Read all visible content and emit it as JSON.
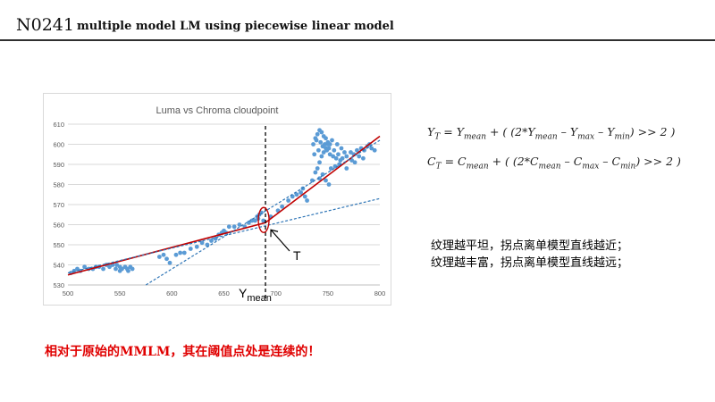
{
  "header": {
    "slide_id": "N0241",
    "title": "multiple  model LM using piecewise linear model"
  },
  "formulas": {
    "yt": {
      "lhs": "Y",
      "lhs_sub": "T",
      "p1": " = Y",
      "s1": "mean",
      "p2": " + ( (2*Y",
      "s2": "mean",
      "p3": " – Y",
      "s3": "max",
      "p4": " – Y",
      "s4": "min",
      "p5": ") >> 2 )"
    },
    "ct": {
      "lhs": "C",
      "lhs_sub": "T",
      "p1": " = C",
      "s1": "mean",
      "p2": " + ( (2*C",
      "s2": "mean",
      "p3": " – C",
      "s3": "max",
      "p4": " – C",
      "s4": "min",
      "p5": ") >> 2 )"
    }
  },
  "notes": {
    "line1": "纹理越平坦，拐点离单模型直线越近；",
    "line2": "纹理越丰富，拐点离单模型直线越远；"
  },
  "conclusion": "相对于原始的MMLM，其在阈值点处是连续的！",
  "annotations": {
    "ymean_main": "Y",
    "ymean_sub": "mean",
    "t_label": "T"
  },
  "colors": {
    "points": "#5b9bd5",
    "piecewise_line": "#c00000",
    "fit_line": "#2e75b6",
    "conclusion_text": "#e00000"
  },
  "chart_data": {
    "type": "scatter",
    "title": "Luma vs Chroma cloudpoint",
    "xlim": [
      500,
      800
    ],
    "ylim": [
      530,
      610
    ],
    "x_ticks": [
      500,
      550,
      600,
      650,
      700,
      750,
      800
    ],
    "y_ticks": [
      530,
      540,
      550,
      560,
      570,
      580,
      590,
      600,
      610
    ],
    "grid": true,
    "threshold_x": 690,
    "points": [
      [
        503,
        536
      ],
      [
        506,
        537
      ],
      [
        509,
        538
      ],
      [
        512,
        537
      ],
      [
        516,
        539
      ],
      [
        520,
        538
      ],
      [
        524,
        538
      ],
      [
        527,
        539
      ],
      [
        530,
        539
      ],
      [
        534,
        538
      ],
      [
        537,
        540
      ],
      [
        540,
        539
      ],
      [
        543,
        540
      ],
      [
        547,
        540
      ],
      [
        550,
        539
      ],
      [
        552,
        538
      ],
      [
        555,
        539
      ],
      [
        557,
        538
      ],
      [
        560,
        539
      ],
      [
        562,
        538
      ],
      [
        558,
        537
      ],
      [
        550,
        537
      ],
      [
        546,
        538
      ],
      [
        588,
        544
      ],
      [
        592,
        545
      ],
      [
        595,
        543
      ],
      [
        598,
        541
      ],
      [
        604,
        545
      ],
      [
        608,
        546
      ],
      [
        612,
        546
      ],
      [
        618,
        548
      ],
      [
        624,
        549
      ],
      [
        629,
        551
      ],
      [
        634,
        550
      ],
      [
        638,
        552
      ],
      [
        642,
        553
      ],
      [
        645,
        555
      ],
      [
        648,
        556
      ],
      [
        650,
        557
      ],
      [
        652,
        556
      ],
      [
        655,
        559
      ],
      [
        660,
        559
      ],
      [
        665,
        560
      ],
      [
        670,
        559
      ],
      [
        674,
        561
      ],
      [
        677,
        562
      ],
      [
        680,
        562
      ],
      [
        682,
        564
      ],
      [
        684,
        565
      ],
      [
        686,
        566
      ],
      [
        683,
        563
      ],
      [
        688,
        562
      ],
      [
        695,
        564
      ],
      [
        702,
        567
      ],
      [
        706,
        569
      ],
      [
        712,
        572
      ],
      [
        716,
        574
      ],
      [
        720,
        575
      ],
      [
        724,
        576
      ],
      [
        728,
        574
      ],
      [
        730,
        572
      ],
      [
        726,
        578
      ],
      [
        735,
        582
      ],
      [
        738,
        586
      ],
      [
        740,
        588
      ],
      [
        742,
        591
      ],
      [
        744,
        594
      ],
      [
        746,
        596
      ],
      [
        748,
        598
      ],
      [
        750,
        600
      ],
      [
        736,
        600
      ],
      [
        738,
        603
      ],
      [
        740,
        605
      ],
      [
        742,
        607
      ],
      [
        744,
        606
      ],
      [
        746,
        604
      ],
      [
        748,
        603
      ],
      [
        750,
        601
      ],
      [
        752,
        600
      ],
      [
        754,
        602
      ],
      [
        737,
        595
      ],
      [
        741,
        597
      ],
      [
        745,
        599
      ],
      [
        749,
        597
      ],
      [
        752,
        595
      ],
      [
        755,
        594
      ],
      [
        758,
        593
      ],
      [
        760,
        595
      ],
      [
        762,
        592
      ],
      [
        739,
        602
      ],
      [
        743,
        601
      ],
      [
        747,
        600
      ],
      [
        751,
        598
      ],
      [
        756,
        597
      ],
      [
        759,
        600
      ],
      [
        763,
        598
      ],
      [
        766,
        596
      ],
      [
        753,
        588
      ],
      [
        757,
        589
      ],
      [
        761,
        590
      ],
      [
        764,
        593
      ],
      [
        768,
        594
      ],
      [
        772,
        596
      ],
      [
        775,
        595
      ],
      [
        778,
        597
      ],
      [
        782,
        598
      ],
      [
        785,
        597
      ],
      [
        788,
        599
      ],
      [
        790,
        600
      ],
      [
        792,
        598
      ],
      [
        795,
        597
      ],
      [
        773,
        592
      ],
      [
        780,
        594
      ],
      [
        742,
        583
      ],
      [
        748,
        582
      ],
      [
        751,
        580
      ],
      [
        745,
        585
      ],
      [
        768,
        588
      ],
      [
        776,
        591
      ],
      [
        784,
        593
      ]
    ],
    "lines": [
      {
        "role": "piecewise-left",
        "points": [
          [
            500,
            535
          ],
          [
            690,
            561
          ]
        ]
      },
      {
        "role": "piecewise-right",
        "points": [
          [
            690,
            561
          ],
          [
            800,
            604
          ]
        ]
      },
      {
        "role": "fit-upper",
        "points": [
          [
            575,
            530
          ],
          [
            800,
            602
          ]
        ]
      },
      {
        "role": "fit-lower",
        "points": [
          [
            500,
            536
          ],
          [
            800,
            573
          ]
        ]
      }
    ]
  }
}
